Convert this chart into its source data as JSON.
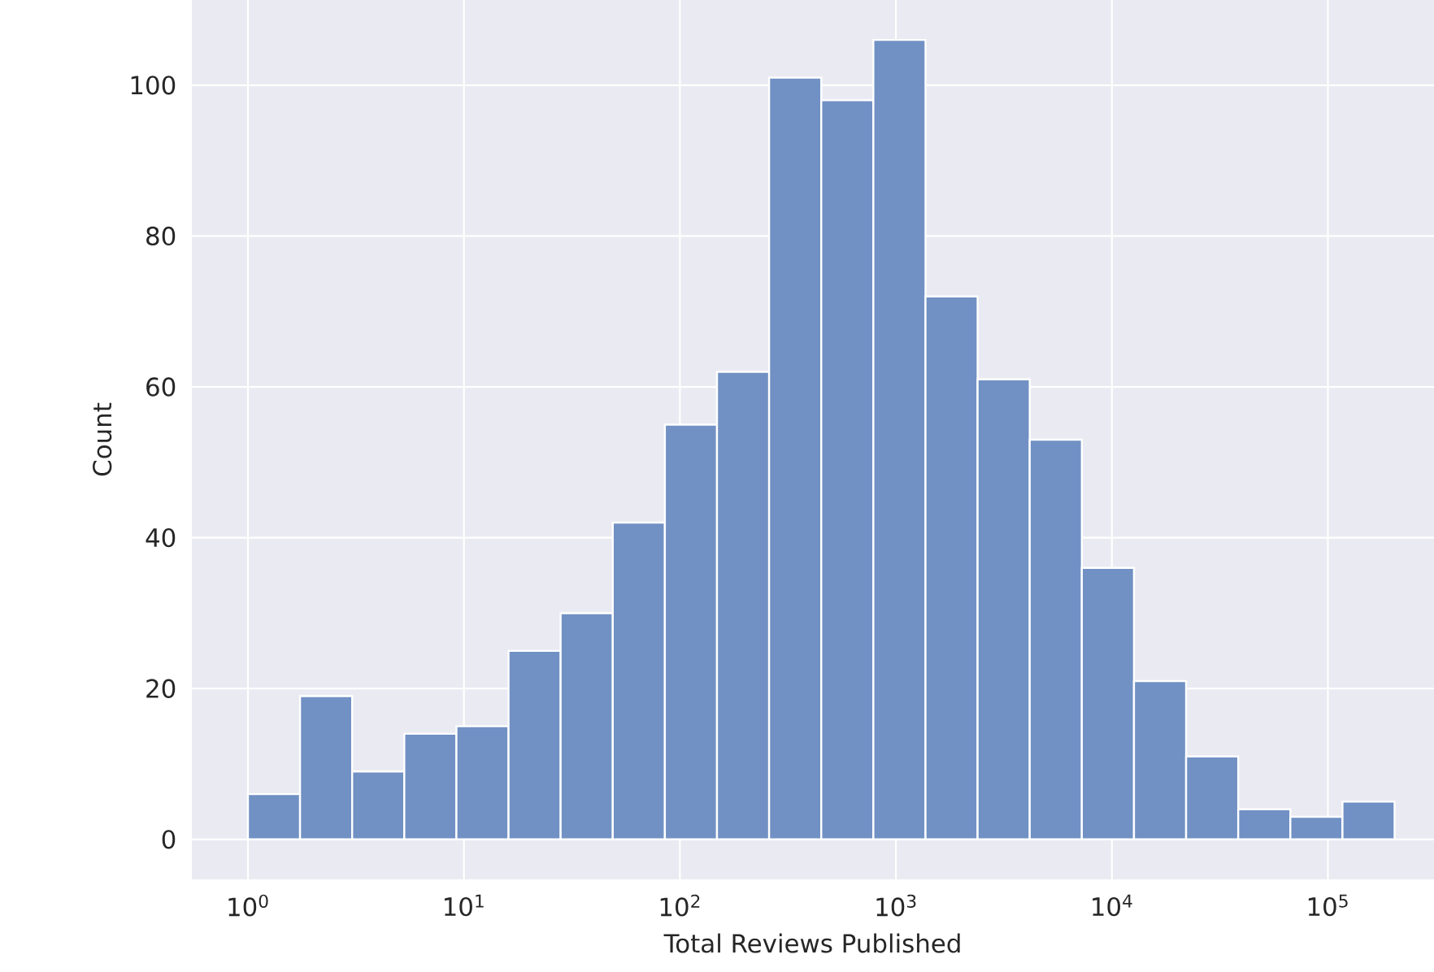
{
  "chart_data": {
    "type": "histogram",
    "xlabel": "Total Reviews Published",
    "ylabel": "Count",
    "log": "x",
    "grid": true,
    "color": "#7191c4",
    "bins": [
      1,
      1.743,
      3.038,
      5.296,
      9.23,
      16.09,
      28.04,
      48.88,
      85.2,
      148.5,
      258.8,
      451.2,
      786.5,
      1371,
      2389,
      4165,
      7260,
      12655,
      22057,
      38448,
      67020,
      116820,
      203630
    ],
    "values": [
      6,
      19,
      9,
      14,
      15,
      25,
      30,
      42,
      55,
      62,
      101,
      98,
      106,
      72,
      61,
      53,
      36,
      21,
      11,
      4,
      3,
      5
    ],
    "xlim": [
      0.55,
      310000
    ],
    "ylim": [
      -5.3,
      111.3
    ],
    "xticks": [
      {
        "value": 1,
        "label": "10$^{0}$"
      },
      {
        "value": 10,
        "label": "10$^{1}$"
      },
      {
        "value": 100,
        "label": "10$^{2}$"
      },
      {
        "value": 1000,
        "label": "10$^{3}$"
      },
      {
        "value": 10000,
        "label": "10$^{4}$"
      },
      {
        "value": 100000,
        "label": "10$^{5}$"
      }
    ],
    "yticks": [
      0,
      20,
      40,
      60,
      80,
      100
    ]
  }
}
